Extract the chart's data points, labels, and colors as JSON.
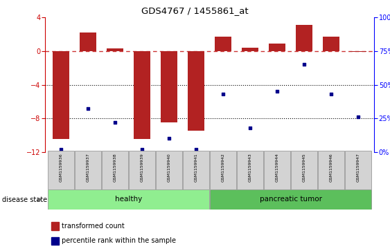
{
  "title": "GDS4767 / 1455861_at",
  "samples": [
    "GSM1159936",
    "GSM1159937",
    "GSM1159938",
    "GSM1159939",
    "GSM1159940",
    "GSM1159941",
    "GSM1159942",
    "GSM1159943",
    "GSM1159944",
    "GSM1159945",
    "GSM1159946",
    "GSM1159947"
  ],
  "transformed_count": [
    -10.5,
    2.2,
    0.3,
    -10.5,
    -8.5,
    -9.5,
    1.7,
    0.4,
    0.9,
    3.1,
    1.7,
    -0.1
  ],
  "percentile_rank": [
    2,
    32,
    22,
    2,
    10,
    2,
    43,
    18,
    45,
    65,
    43,
    26
  ],
  "ylim_left": [
    -12,
    4
  ],
  "ylim_right": [
    0,
    100
  ],
  "bar_color": "#B22222",
  "dot_color": "#00008B",
  "hline_color": "#CC3333",
  "grid_color": "#000000",
  "label_bg": "#D3D3D3",
  "healthy_color": "#90EE90",
  "tumor_color": "#5CBF5C",
  "legend_bar_label": "transformed count",
  "legend_dot_label": "percentile rank within the sample",
  "disease_state_label": "disease state",
  "yticks_left": [
    -12,
    -8,
    -4,
    0,
    4
  ],
  "yticks_right": [
    0,
    25,
    50,
    75,
    100
  ],
  "n_healthy": 6,
  "n_tumor": 6
}
